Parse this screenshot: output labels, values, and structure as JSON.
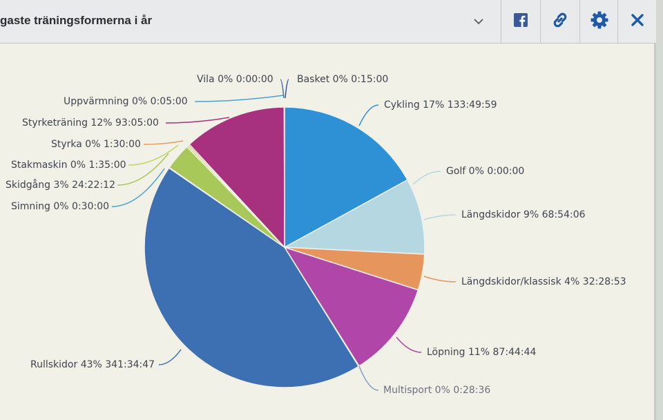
{
  "header": {
    "title": "gaste träningsformerna i år",
    "dropdown_icon": "chevron-down-icon",
    "actions": [
      {
        "name": "facebook-share",
        "icon": "facebook-icon",
        "color": "#3b5998"
      },
      {
        "name": "link",
        "icon": "link-icon",
        "color": "#1e5aa8"
      },
      {
        "name": "settings",
        "icon": "gear-icon",
        "color": "#1e5aa8"
      },
      {
        "name": "close",
        "icon": "close-icon",
        "color": "#1e5aa8"
      }
    ]
  },
  "chart_data": {
    "type": "pie",
    "slices": [
      {
        "label": "Cykling 17% 133:49:59",
        "percent": 17.08,
        "color": "#2e90d5"
      },
      {
        "label": "Golf 0% 0:00:00",
        "percent": 0,
        "color": "#b5d7e2"
      },
      {
        "label": "Längdskidor 9% 68:54:06",
        "percent": 8.8,
        "color": "#b5d7e2"
      },
      {
        "label": "Längdskidor/klassisk 4% 32:28:53",
        "percent": 4.15,
        "color": "#e6955d"
      },
      {
        "label": "Löpning 11% 87:44:44",
        "percent": 11.2,
        "color": "#b047a8"
      },
      {
        "label": "Multisport 0% 0:28:36",
        "percent": 0.06,
        "color": "#7b9fc6"
      },
      {
        "label": "Rullskidor 43% 341:34:47",
        "percent": 43.6,
        "color": "#3c70b2"
      },
      {
        "label": "Simning 0% 0:30:00",
        "percent": 0.06,
        "color": "#4aa3d4"
      },
      {
        "label": "Skidgång 3% 24:22:12",
        "percent": 3.11,
        "color": "#a8c85a"
      },
      {
        "label": "Stakmaskin 0% 1:35:00",
        "percent": 0.2,
        "color": "#c2d66a"
      },
      {
        "label": "Styrka 0% 1:30:00",
        "percent": 0.19,
        "color": "#e89a5a"
      },
      {
        "label": "Styrketräning 12% 93:05:00",
        "percent": 11.88,
        "color": "#a7307f"
      },
      {
        "label": "Uppvärmning 0% 0:05:00",
        "percent": 0.01,
        "color": "#4a9fd0"
      },
      {
        "label": "Vila 0% 0:00:00",
        "percent": 0,
        "color": "#4a6fa5"
      },
      {
        "label": "Basket 0% 0:15:00",
        "percent": 0.03,
        "color": "#2f5aa0"
      }
    ]
  }
}
